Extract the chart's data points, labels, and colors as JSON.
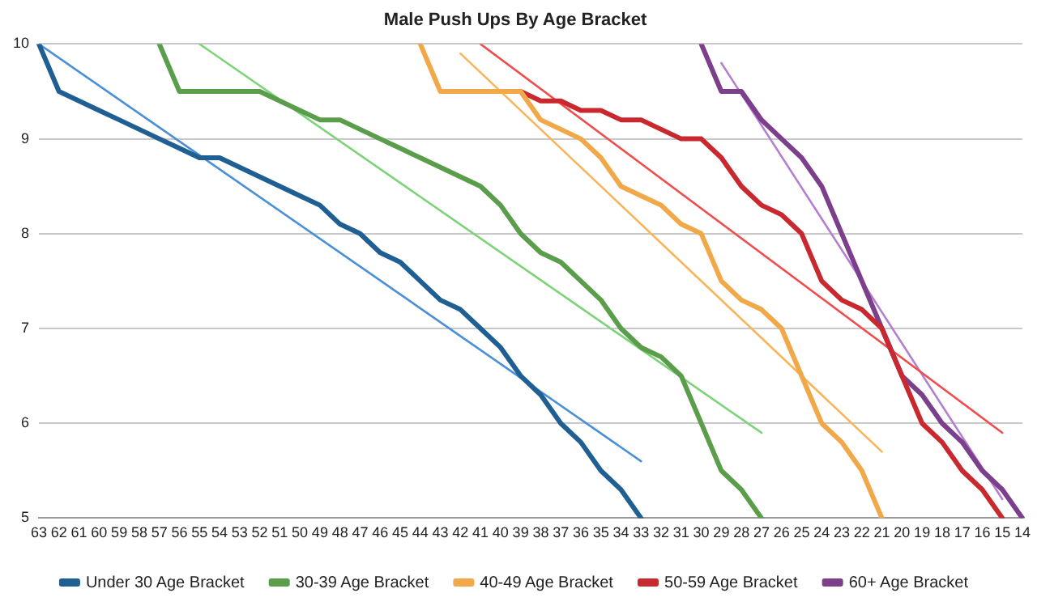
{
  "chart_data": {
    "type": "line",
    "title": "Male Push Ups By Age Bracket",
    "categories": [
      "63",
      "62",
      "61",
      "60",
      "59",
      "58",
      "57",
      "56",
      "55",
      "54",
      "53",
      "52",
      "51",
      "50",
      "49",
      "48",
      "47",
      "46",
      "45",
      "44",
      "43",
      "42",
      "41",
      "40",
      "39",
      "38",
      "37",
      "36",
      "35",
      "34",
      "33",
      "32",
      "31",
      "30",
      "29",
      "28",
      "27",
      "26",
      "25",
      "24",
      "23",
      "22",
      "21",
      "20",
      "19",
      "18",
      "17",
      "16",
      "15",
      "14"
    ],
    "ylim": [
      5,
      10
    ],
    "yticks": [
      5,
      6,
      7,
      8,
      9,
      10
    ],
    "grid": "y",
    "legend": "bottom",
    "marker": "none",
    "line_style": "solid",
    "series": [
      {
        "name": "Under 30 Age Bracket",
        "color": "#1f5f94",
        "values": [
          10,
          9.5,
          9.4,
          9.3,
          9.2,
          9.1,
          9.0,
          8.9,
          8.8,
          8.8,
          8.7,
          8.6,
          8.5,
          8.4,
          8.3,
          8.1,
          8.0,
          7.8,
          7.7,
          7.5,
          7.3,
          7.2,
          7.0,
          6.8,
          6.5,
          6.3,
          6.0,
          5.8,
          5.5,
          5.3,
          5.0,
          null,
          null,
          null,
          null,
          null,
          null,
          null,
          null,
          null,
          null,
          null,
          null,
          null,
          null,
          null,
          null,
          null,
          null,
          null
        ]
      },
      {
        "name": "30-39 Age Bracket",
        "color": "#5a9e4b",
        "values": [
          null,
          null,
          null,
          null,
          null,
          null,
          10,
          9.5,
          9.5,
          9.5,
          9.5,
          9.5,
          9.4,
          9.3,
          9.2,
          9.2,
          9.1,
          9.0,
          8.9,
          8.8,
          8.7,
          8.6,
          8.5,
          8.3,
          8.0,
          7.8,
          7.7,
          7.5,
          7.3,
          7.0,
          6.8,
          6.7,
          6.5,
          6.0,
          5.5,
          5.3,
          5.0,
          null,
          null,
          null,
          null,
          null,
          null,
          null,
          null,
          null,
          null,
          null,
          null,
          null
        ]
      },
      {
        "name": "40-49 Age Bracket",
        "color": "#f0a848",
        "values": [
          null,
          null,
          null,
          null,
          null,
          null,
          null,
          null,
          null,
          null,
          null,
          null,
          null,
          null,
          null,
          null,
          null,
          null,
          null,
          10,
          9.5,
          9.5,
          9.5,
          9.5,
          9.5,
          9.2,
          9.1,
          9.0,
          8.8,
          8.5,
          8.4,
          8.3,
          8.1,
          8.0,
          7.5,
          7.3,
          7.2,
          7.0,
          6.5,
          6.0,
          5.8,
          5.5,
          5.0,
          null,
          null,
          null,
          null,
          null,
          null,
          null
        ]
      },
      {
        "name": "50-59 Age Bracket",
        "color": "#c8282e",
        "values": [
          null,
          null,
          null,
          null,
          null,
          null,
          null,
          null,
          null,
          null,
          null,
          null,
          null,
          null,
          null,
          null,
          null,
          null,
          null,
          null,
          null,
          null,
          null,
          null,
          9.5,
          9.4,
          9.4,
          9.3,
          9.3,
          9.2,
          9.2,
          9.1,
          9.0,
          9.0,
          8.8,
          8.5,
          8.3,
          8.2,
          8.0,
          7.5,
          7.3,
          7.2,
          7.0,
          6.5,
          6.0,
          5.8,
          5.5,
          5.3,
          5.0,
          null
        ]
      },
      {
        "name": "60+ Age Bracket",
        "color": "#7b3f8c",
        "values": [
          null,
          null,
          null,
          null,
          null,
          null,
          null,
          null,
          null,
          null,
          null,
          null,
          null,
          null,
          null,
          null,
          null,
          null,
          null,
          null,
          null,
          null,
          null,
          null,
          null,
          null,
          null,
          null,
          null,
          null,
          null,
          null,
          null,
          10,
          9.5,
          9.5,
          9.2,
          9.0,
          8.8,
          8.5,
          8.0,
          7.5,
          7.0,
          6.5,
          6.3,
          6.0,
          5.8,
          5.5,
          5.3,
          5.0
        ]
      },
      {
        "color": "#4a90d9",
        "values": [
          10,
          null,
          null,
          null,
          null,
          null,
          null,
          null,
          null,
          null,
          null,
          null,
          null,
          null,
          null,
          null,
          null,
          null,
          null,
          null,
          null,
          null,
          null,
          null,
          null,
          null,
          null,
          null,
          null,
          null,
          5.6,
          null,
          null,
          null,
          null,
          null,
          null,
          null,
          null,
          null,
          null,
          null,
          null,
          null,
          null,
          null,
          null,
          null,
          null,
          null
        ]
      },
      {
        "color": "#7ed37a",
        "values": [
          null,
          null,
          null,
          null,
          null,
          null,
          null,
          null,
          10,
          null,
          null,
          null,
          null,
          null,
          null,
          null,
          null,
          null,
          null,
          null,
          null,
          null,
          null,
          null,
          null,
          null,
          null,
          null,
          null,
          null,
          null,
          null,
          null,
          null,
          null,
          null,
          5.9,
          null,
          null,
          null,
          null,
          null,
          null,
          null,
          null,
          null,
          null,
          null,
          null,
          null
        ]
      },
      {
        "color": "#f9b55a",
        "values": [
          null,
          null,
          null,
          null,
          null,
          null,
          null,
          null,
          null,
          null,
          null,
          null,
          null,
          null,
          null,
          null,
          null,
          null,
          null,
          null,
          null,
          9.9,
          null,
          null,
          null,
          null,
          null,
          null,
          null,
          null,
          null,
          null,
          null,
          null,
          null,
          null,
          null,
          null,
          null,
          null,
          null,
          null,
          5.7,
          null,
          null,
          null,
          null,
          null,
          null,
          null
        ]
      },
      {
        "color": "#f04e4e",
        "values": [
          null,
          null,
          null,
          null,
          null,
          null,
          null,
          null,
          null,
          null,
          null,
          null,
          null,
          null,
          null,
          null,
          null,
          null,
          null,
          null,
          null,
          null,
          10,
          null,
          null,
          null,
          null,
          null,
          null,
          null,
          null,
          null,
          null,
          null,
          null,
          null,
          null,
          null,
          null,
          null,
          null,
          null,
          null,
          null,
          null,
          null,
          null,
          null,
          5.9,
          null
        ]
      },
      {
        "color": "#b57fd0",
        "values": [
          null,
          null,
          null,
          null,
          null,
          null,
          null,
          null,
          null,
          null,
          null,
          null,
          null,
          null,
          null,
          null,
          null,
          null,
          null,
          null,
          null,
          null,
          null,
          null,
          null,
          null,
          null,
          null,
          null,
          null,
          null,
          null,
          null,
          null,
          9.8,
          null,
          null,
          null,
          null,
          null,
          null,
          null,
          null,
          null,
          null,
          null,
          null,
          null,
          5.2,
          null
        ]
      }
    ]
  }
}
